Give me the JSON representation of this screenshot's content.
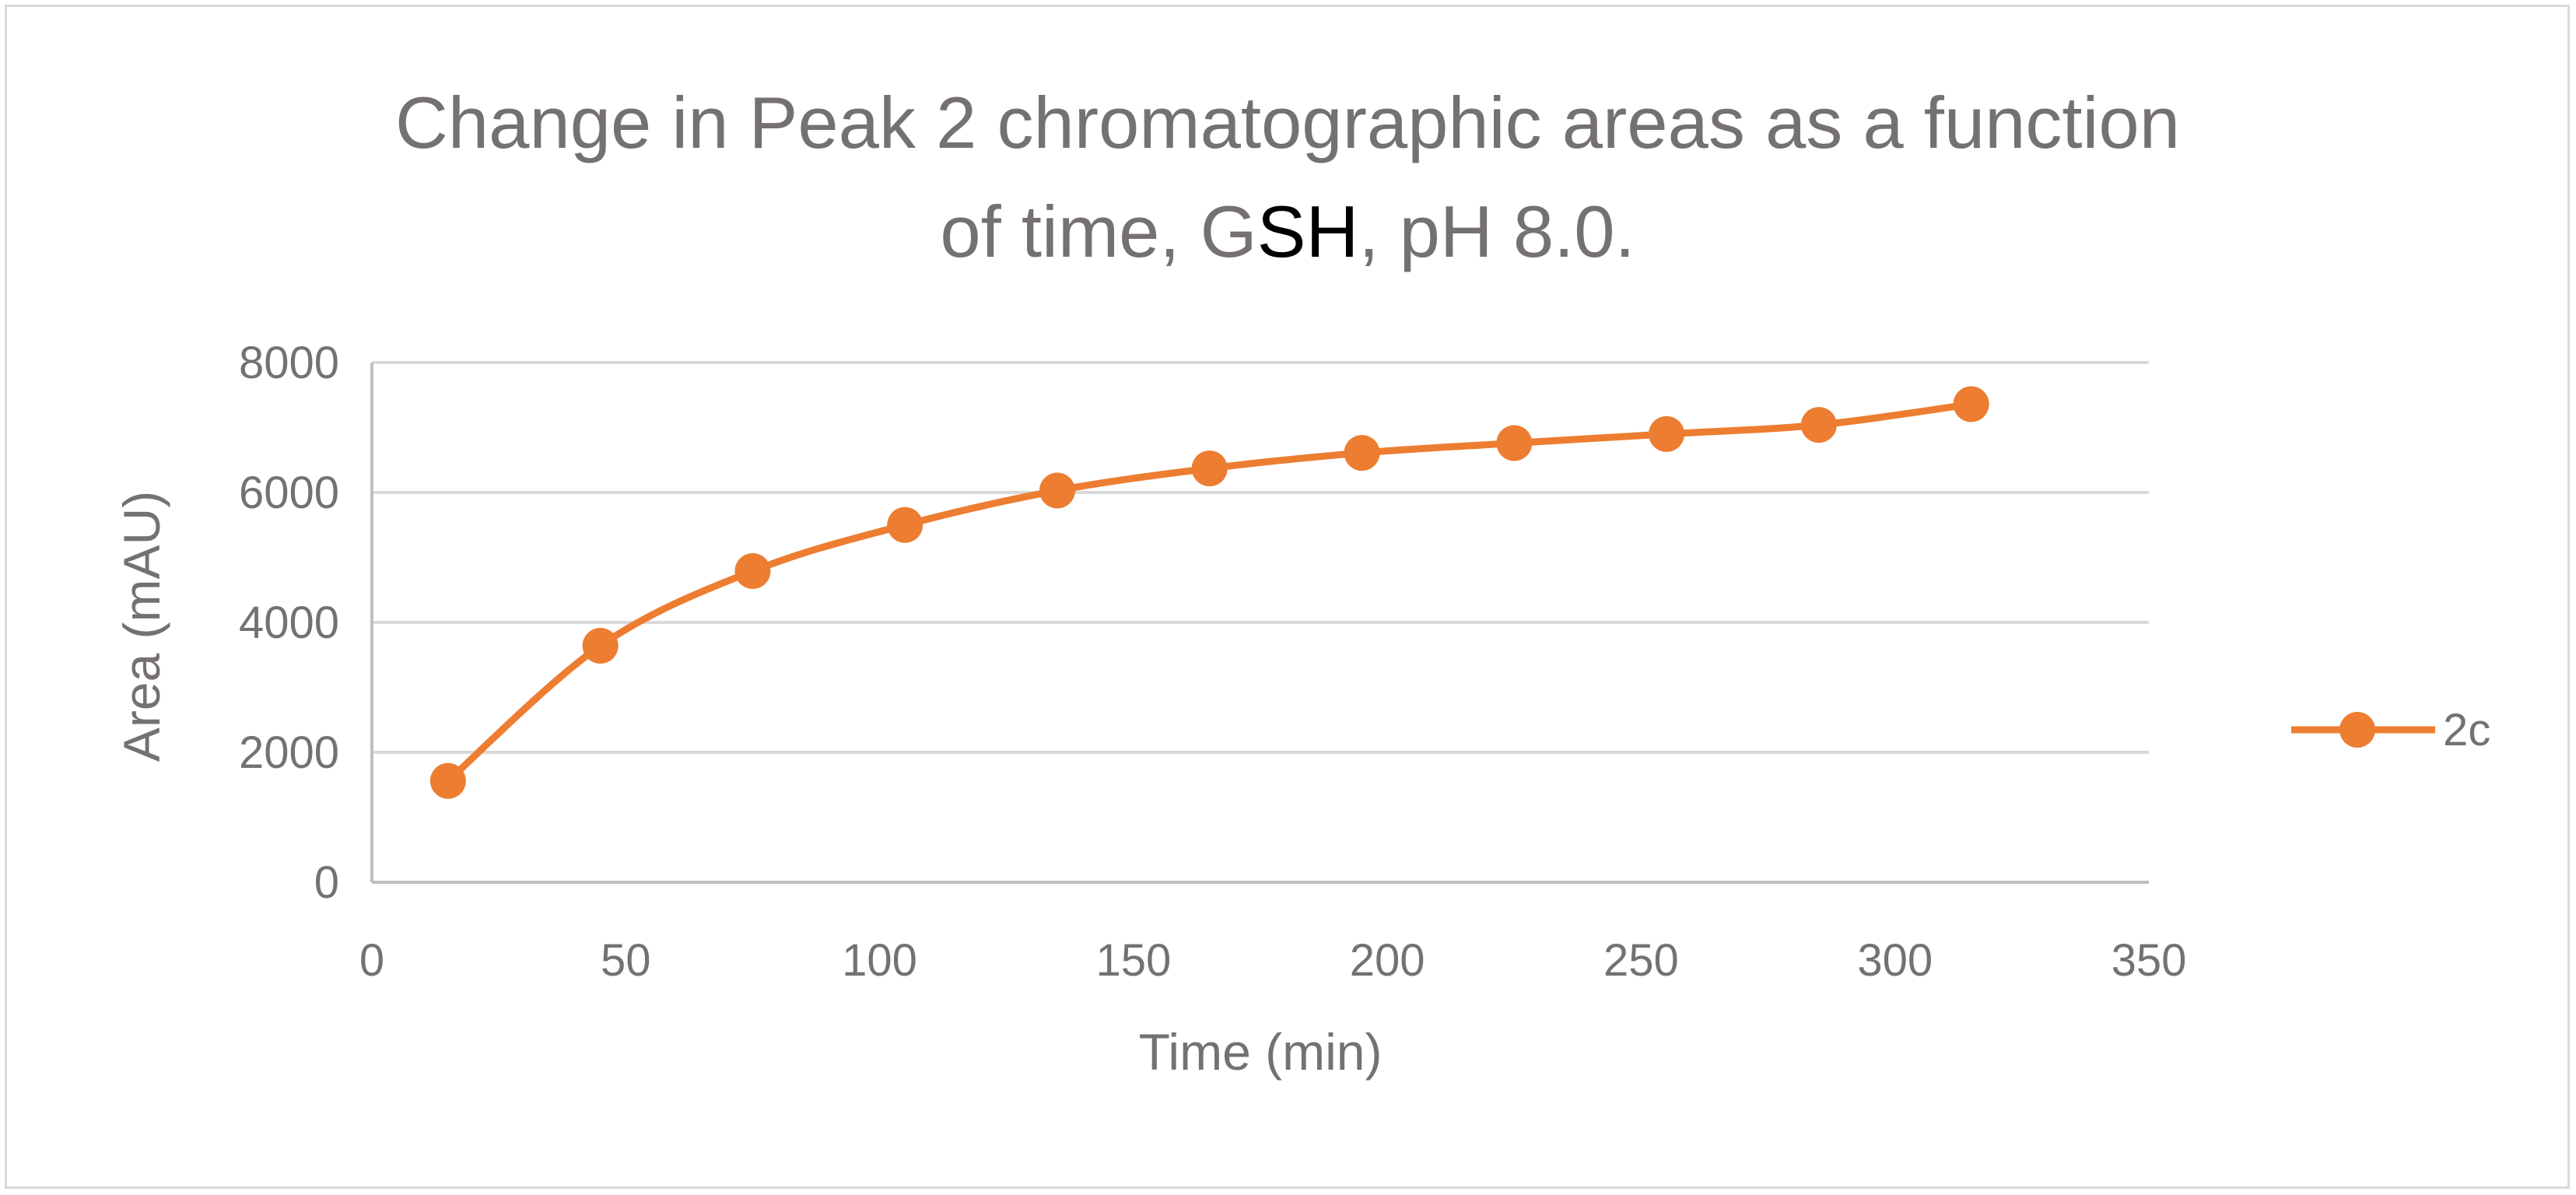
{
  "chart_data": {
    "type": "line",
    "title": {
      "line1": "Change in Peak 2 chromatographic areas as a function",
      "line2_before": "of time, G",
      "line2_accent": "SH",
      "line2_after": ", pH 8.0."
    },
    "xlabel": "Time (min)",
    "ylabel": "Area (mAU)",
    "xlim": [
      0,
      350
    ],
    "ylim": [
      0,
      8000
    ],
    "xticks": [
      0,
      50,
      100,
      150,
      200,
      250,
      300,
      350
    ],
    "yticks": [
      0,
      2000,
      4000,
      6000,
      8000
    ],
    "grid": "horizontal",
    "legend_position": "right",
    "smooth": true,
    "series": [
      {
        "name": "2c",
        "color": "#ED7D31",
        "marker": "circle",
        "x": [
          15,
          45,
          75,
          105,
          135,
          165,
          195,
          225,
          255,
          285,
          315
        ],
        "y": [
          1560,
          3640,
          4790,
          5500,
          6030,
          6370,
          6610,
          6760,
          6900,
          7040,
          7360
        ]
      }
    ]
  }
}
